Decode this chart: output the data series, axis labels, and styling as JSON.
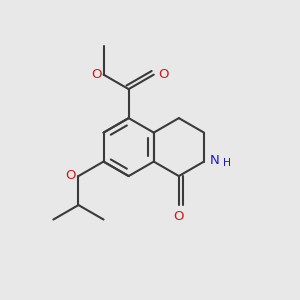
{
  "background_color": "#e8e8e8",
  "bond_color": "#3a3a3a",
  "bond_lw": 1.5,
  "figsize": [
    3.0,
    3.0
  ],
  "dpi": 100,
  "colors": {
    "N": "#1a1acc",
    "O": "#cc1a1a"
  },
  "font_size": 9.5,
  "font_size_small": 8.0
}
